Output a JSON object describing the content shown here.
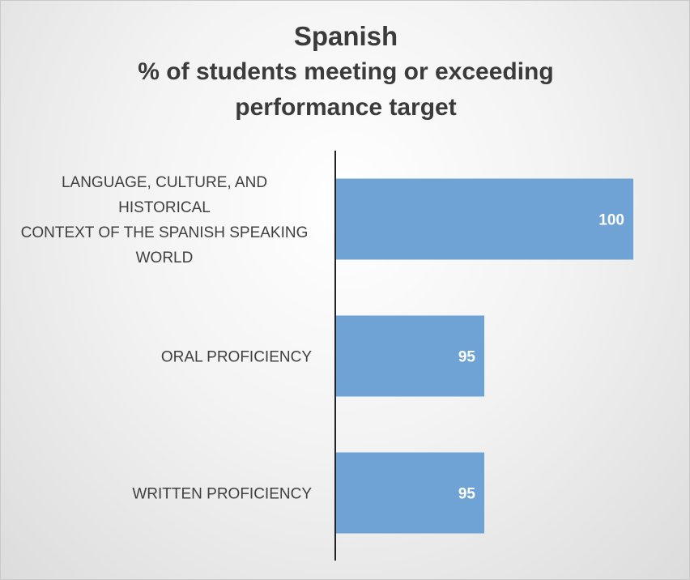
{
  "chart_data": {
    "type": "bar",
    "orientation": "horizontal",
    "title": "Spanish",
    "subtitle": "% of students meeting or exceeding performance target",
    "subtitle_lines": [
      "% of students meeting or exceeding",
      "performance target"
    ],
    "categories": [
      "LANGUAGE, CULTURE, AND HISTORICAL CONTEXT OF THE SPANISH SPEAKING WORLD",
      "ORAL PROFICIENCY",
      "WRITTEN PROFICIENCY"
    ],
    "category_lines": [
      [
        "LANGUAGE, CULTURE, AND",
        "HISTORICAL",
        "CONTEXT OF THE SPANISH SPEAKING",
        "WORLD"
      ],
      [
        "ORAL PROFICIENCY"
      ],
      [
        "WRITTEN PROFICIENCY"
      ]
    ],
    "values": [
      100,
      95,
      95
    ],
    "data_labels": [
      "100",
      "95",
      "95"
    ],
    "xlim": [
      90,
      100
    ],
    "bar_color": "#6fa3d6",
    "axis_color": "#222222",
    "grid": false,
    "legend": "none"
  }
}
